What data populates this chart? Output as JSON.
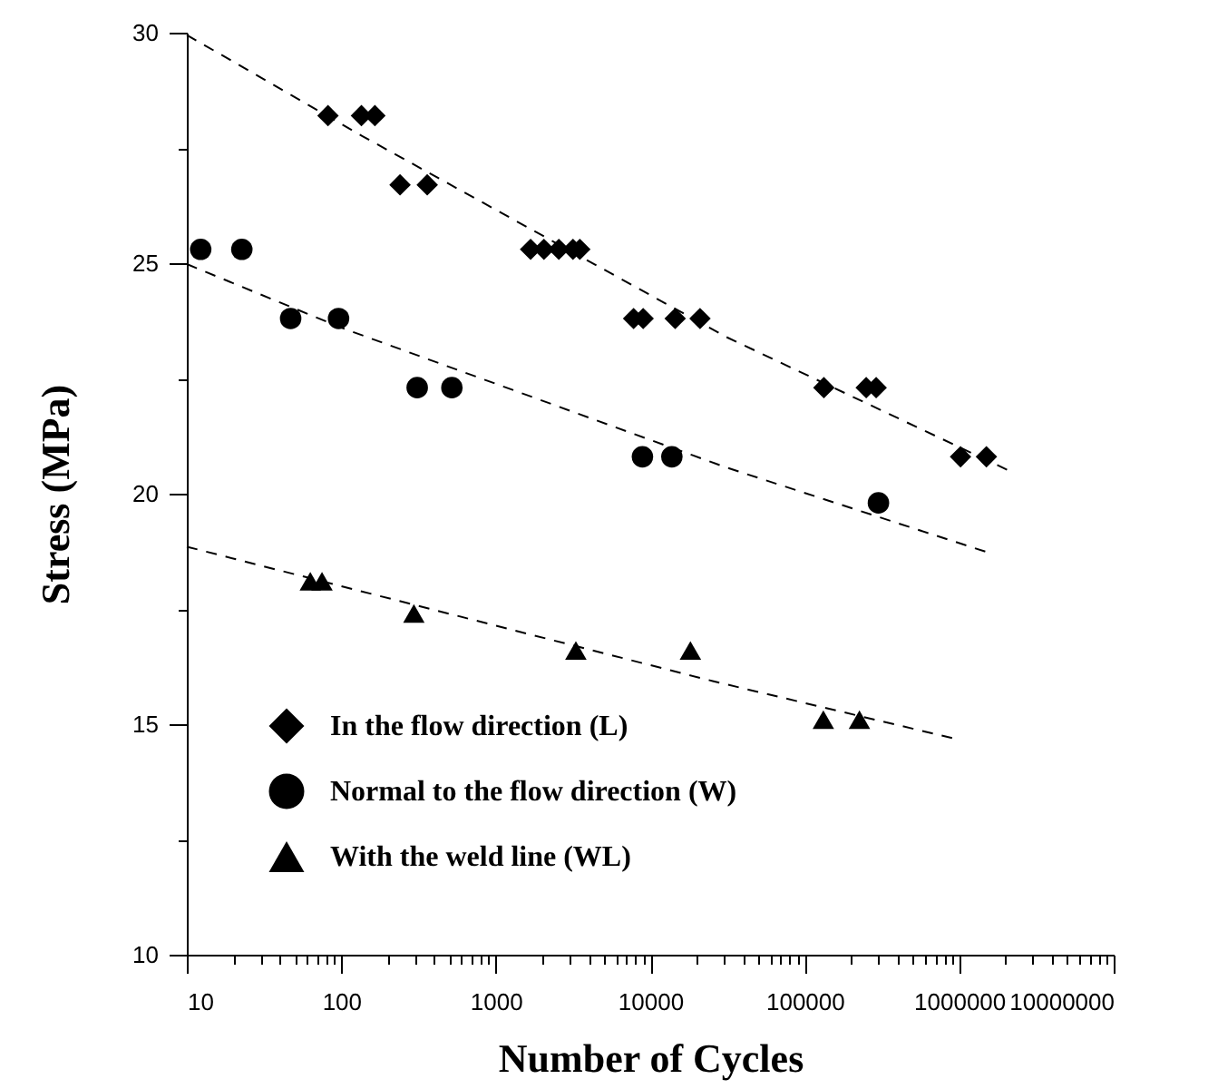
{
  "chart_data": {
    "type": "scatter",
    "xlabel": "Number of Cycles",
    "ylabel": "Stress (MPa)",
    "log": "x",
    "xlim": [
      10,
      10000000
    ],
    "ylim": [
      10,
      30
    ],
    "legend": "bottom left",
    "grid": false,
    "xticks": [
      10,
      {
        "value": 20,
        "label": null
      },
      {
        "value": 30,
        "label": null
      },
      {
        "value": 40,
        "label": null
      },
      {
        "value": 50,
        "label": null
      },
      {
        "value": 60,
        "label": null
      },
      {
        "value": 70,
        "label": null
      },
      {
        "value": 80,
        "label": null
      },
      {
        "value": 90,
        "label": null
      },
      100,
      {
        "value": 200,
        "label": null
      },
      {
        "value": 300,
        "label": null
      },
      {
        "value": 400,
        "label": null
      },
      {
        "value": 500,
        "label": null
      },
      {
        "value": 600,
        "label": null
      },
      {
        "value": 700,
        "label": null
      },
      {
        "value": 800,
        "label": null
      },
      {
        "value": 900,
        "label": null
      },
      1000,
      {
        "value": 2000,
        "label": null
      },
      {
        "value": 3000,
        "label": null
      },
      {
        "value": 4000,
        "label": null
      },
      {
        "value": 5000,
        "label": null
      },
      {
        "value": 6000,
        "label": null
      },
      {
        "value": 7000,
        "label": null
      },
      {
        "value": 8000,
        "label": null
      },
      {
        "value": 9000,
        "label": null
      },
      10000,
      {
        "value": 20000,
        "label": null
      },
      {
        "value": 30000,
        "label": null
      },
      {
        "value": 40000,
        "label": null
      },
      {
        "value": 50000,
        "label": null
      },
      {
        "value": 60000,
        "label": null
      },
      {
        "value": 70000,
        "label": null
      },
      {
        "value": 80000,
        "label": null
      },
      {
        "value": 90000,
        "label": null
      },
      100000,
      {
        "value": 200000,
        "label": null
      },
      {
        "value": 300000,
        "label": null
      },
      {
        "value": 400000,
        "label": null
      },
      {
        "value": 500000,
        "label": null
      },
      {
        "value": 600000,
        "label": null
      },
      {
        "value": 700000,
        "label": null
      },
      {
        "value": 800000,
        "label": null
      },
      {
        "value": 900000,
        "label": null
      },
      1000000,
      {
        "value": 2000000,
        "label": null
      },
      {
        "value": 3000000,
        "label": null
      },
      {
        "value": 4000000,
        "label": null
      },
      {
        "value": 5000000,
        "label": null
      },
      {
        "value": 6000000,
        "label": null
      },
      {
        "value": 7000000,
        "label": null
      },
      {
        "value": 8000000,
        "label": null
      },
      {
        "value": 9000000,
        "label": null
      },
      10000000
    ],
    "yticks": [
      10,
      {
        "value": 12.5,
        "label": null
      },
      15,
      {
        "value": 17.5,
        "label": null
      },
      20,
      {
        "value": 22.5,
        "label": null
      },
      25,
      {
        "value": 27.5,
        "label": null
      },
      30
    ],
    "series": [
      {
        "name": "In the flow direction (L)",
        "type": "scatter",
        "marker": "diamond",
        "color": "#000000",
        "x": [
          82,
          135,
          165,
          240,
          360,
          1680,
          2050,
          2560,
          3160,
          3500,
          7800,
          9000,
          14500,
          21000,
          133000,
          250000,
          290000,
          1020000,
          1500000
        ],
        "values": [
          28.2,
          28.2,
          28.2,
          26.7,
          26.7,
          25.3,
          25.3,
          25.3,
          25.3,
          25.3,
          23.8,
          23.8,
          23.8,
          23.8,
          22.3,
          22.3,
          22.3,
          20.8,
          20.8
        ]
      },
      {
        "name": "Normal to the flow direction (W)",
        "type": "scatter",
        "marker": "circle",
        "color": "#000000",
        "x": [
          12.3,
          22.7,
          47,
          96,
          310,
          520,
          8900,
          13800,
          300000
        ],
        "values": [
          25.3,
          25.3,
          23.8,
          23.8,
          22.3,
          22.3,
          20.8,
          20.8,
          19.8
        ]
      },
      {
        "name": "With the weld line (WL)",
        "type": "scatter",
        "marker": "triangle",
        "color": "#000000",
        "x": [
          63,
          75,
          295,
          3300,
          18200,
          132000,
          226000
        ],
        "values": [
          18.1,
          18.1,
          17.4,
          16.6,
          16.6,
          15.1,
          15.1
        ]
      },
      {
        "type": "line",
        "line_style": "dashed",
        "marker": "none",
        "color": "#000000",
        "x": [
          10,
          138,
          31000,
          2100000
        ],
        "values": [
          29.95,
          27.75,
          23.4,
          20.5
        ]
      },
      {
        "type": "line",
        "line_style": "dashed",
        "marker": "none",
        "color": "#000000",
        "x": [
          10,
          100,
          31000,
          1550000
        ],
        "values": [
          24.98,
          23.6,
          20.57,
          18.72
        ]
      },
      {
        "type": "line",
        "line_style": "dashed",
        "marker": "none",
        "color": "#000000",
        "x": [
          10,
          25700,
          900000
        ],
        "values": [
          18.85,
          15.93,
          14.7
        ]
      }
    ]
  }
}
